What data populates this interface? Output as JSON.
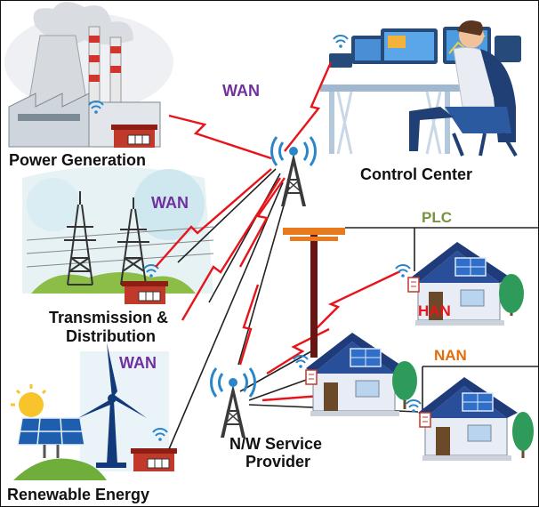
{
  "wan_labels": [
    "WAN",
    "WAN",
    "WAN"
  ],
  "nodes": [
    {
      "label": "Power Generation"
    },
    {
      "label": "Control Center"
    },
    {
      "label_lines": [
        "Transmission &",
        "Distribution"
      ]
    },
    {
      "label": "Renewable Energy"
    },
    {
      "label_lines": [
        "N/W Service",
        "Provider"
      ]
    }
  ],
  "networks": [
    "PLC",
    "HAN",
    "NAN"
  ]
}
